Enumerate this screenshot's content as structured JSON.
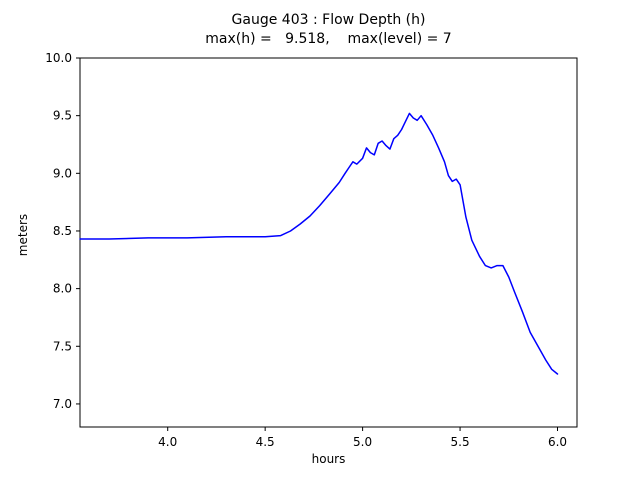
{
  "chart_data": {
    "type": "line",
    "title": "Gauge 403 : Flow Depth (h)",
    "subtitle": "max(h) =   9.518,    max(level) = 7",
    "xlabel": "hours",
    "ylabel": "meters",
    "xlim": [
      3.55,
      6.1
    ],
    "ylim": [
      6.8,
      10.0
    ],
    "xtick_labels": [
      "4.0",
      "4.5",
      "5.0",
      "5.5",
      "6.0"
    ],
    "ytick_labels": [
      "7.0",
      "7.5",
      "8.0",
      "8.5",
      "9.0",
      "9.5",
      "10.0"
    ],
    "grid": false,
    "legend": "none",
    "line_color": "#0000ff",
    "frame_color": "#000000",
    "max_h": 9.518,
    "max_level": 7,
    "series": [
      {
        "name": "h",
        "x": [
          3.55,
          3.7,
          3.9,
          4.1,
          4.3,
          4.5,
          4.58,
          4.63,
          4.68,
          4.73,
          4.78,
          4.83,
          4.88,
          4.91,
          4.93,
          4.95,
          4.97,
          5.0,
          5.02,
          5.04,
          5.06,
          5.08,
          5.1,
          5.12,
          5.14,
          5.16,
          5.18,
          5.2,
          5.22,
          5.24,
          5.26,
          5.28,
          5.3,
          5.33,
          5.36,
          5.39,
          5.42,
          5.44,
          5.46,
          5.48,
          5.5,
          5.53,
          5.56,
          5.6,
          5.63,
          5.66,
          5.69,
          5.72,
          5.75,
          5.78,
          5.82,
          5.86,
          5.9,
          5.94,
          5.97,
          6.0
        ],
        "y": [
          8.43,
          8.43,
          8.44,
          8.44,
          8.45,
          8.45,
          8.46,
          8.5,
          8.56,
          8.63,
          8.72,
          8.82,
          8.92,
          9.0,
          9.05,
          9.1,
          9.08,
          9.13,
          9.22,
          9.18,
          9.16,
          9.26,
          9.28,
          9.24,
          9.21,
          9.3,
          9.33,
          9.38,
          9.45,
          9.52,
          9.48,
          9.46,
          9.5,
          9.42,
          9.33,
          9.22,
          9.1,
          8.98,
          8.93,
          8.95,
          8.9,
          8.62,
          8.42,
          8.28,
          8.2,
          8.18,
          8.2,
          8.2,
          8.1,
          7.97,
          7.8,
          7.62,
          7.5,
          7.38,
          7.3,
          7.26
        ]
      }
    ]
  }
}
